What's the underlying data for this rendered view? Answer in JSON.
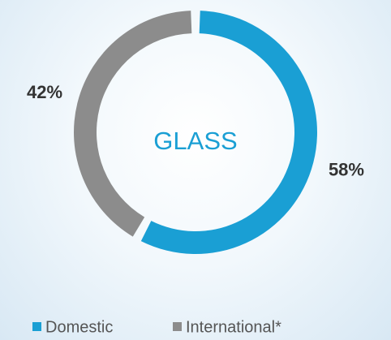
{
  "chart_data": {
    "type": "pie",
    "donut": true,
    "center_label": "GLASS",
    "categories": [
      "Domestic",
      "International*"
    ],
    "values": [
      58,
      42
    ],
    "value_labels": [
      "58%",
      "42%"
    ],
    "colors": [
      "#1a9fd4",
      "#8c8c8c"
    ]
  }
}
